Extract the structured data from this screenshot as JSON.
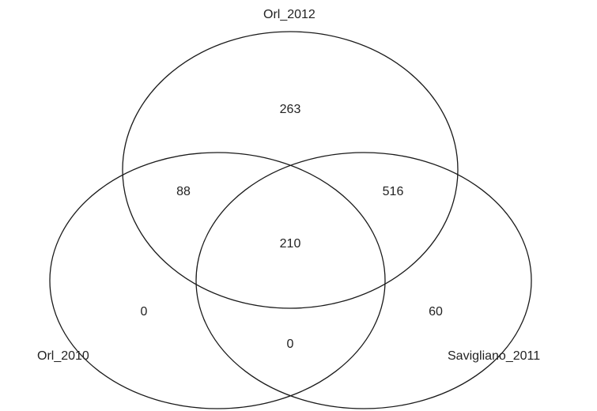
{
  "sets": {
    "top": "Orl_2012",
    "left": "Orl_2010",
    "right": "Savigliano_2011"
  },
  "regions": {
    "top_only": "263",
    "top_left": "88",
    "top_right": "516",
    "all_three": "210",
    "left_only": "0",
    "right_only": "60",
    "left_right": "0"
  },
  "colors": {
    "outline": "#1a1a1a",
    "text": "#222222",
    "background": "#ffffff"
  }
}
